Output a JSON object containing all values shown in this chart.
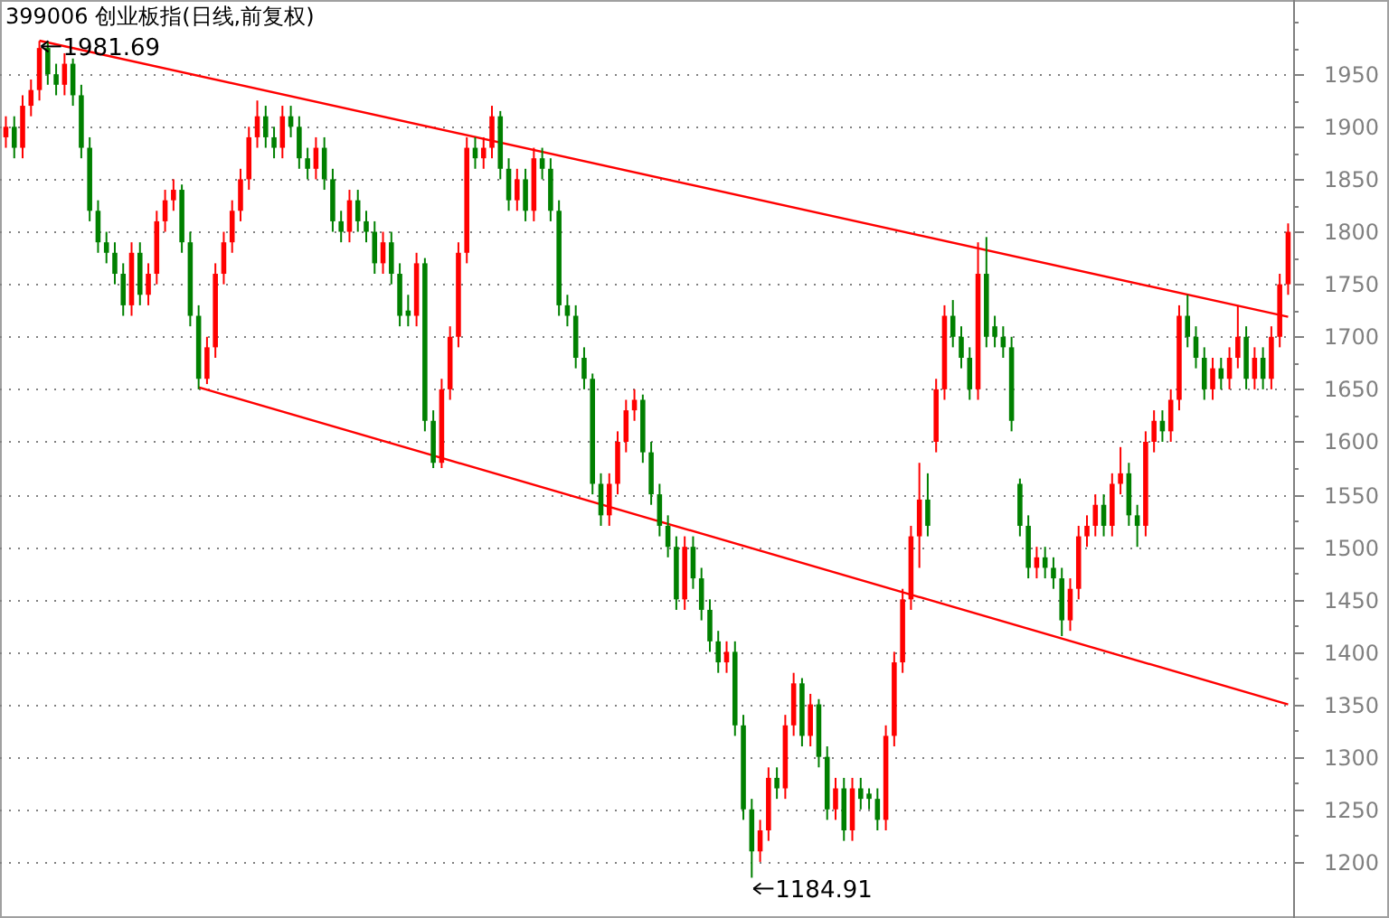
{
  "chart_data": {
    "type": "candlestick",
    "title": "399006 创业板指(日线,前复权)",
    "ylim": [
      1150,
      2019
    ],
    "yticks": [
      1200,
      {
        "value": 1225,
        "label": null
      },
      1250,
      {
        "value": 1275,
        "label": null
      },
      1300,
      {
        "value": 1325,
        "label": null
      },
      1350,
      {
        "value": 1375,
        "label": null
      },
      1400,
      {
        "value": 1425,
        "label": null
      },
      1450,
      {
        "value": 1475,
        "label": null
      },
      1500,
      {
        "value": 1525,
        "label": null
      },
      1550,
      {
        "value": 1575,
        "label": null
      },
      1600,
      {
        "value": 1625,
        "label": null
      },
      1650,
      {
        "value": 1675,
        "label": null
      },
      1700,
      {
        "value": 1725,
        "label": null
      },
      1750,
      {
        "value": 1775,
        "label": null
      },
      1800,
      {
        "value": 1825,
        "label": null
      },
      1850,
      {
        "value": 1875,
        "label": null
      },
      1900,
      {
        "value": 1925,
        "label": null
      },
      1950,
      {
        "value": 1975,
        "label": null
      },
      {
        "value": 2000,
        "label": null
      }
    ],
    "grid": "y",
    "colors": [
      "#ff0000",
      "#008000",
      "#ff0000",
      "#ff0000",
      "#ff0000",
      "#008000",
      "#008000",
      "#ff0000",
      "#008000",
      "#008000",
      "#008000",
      "#008000",
      "#008000",
      "#008000",
      "#008000",
      "#ff0000",
      "#008000",
      "#ff0000",
      "#ff0000",
      "#ff0000",
      "#ff0000",
      "#008000",
      "#008000",
      "#008000",
      "#ff0000",
      "#ff0000",
      "#ff0000",
      "#ff0000",
      "#ff0000",
      "#ff0000",
      "#ff0000",
      "#008000",
      "#008000",
      "#ff0000",
      "#008000",
      "#008000",
      "#008000",
      "#ff0000",
      "#008000",
      "#008000",
      "#008000",
      "#ff0000",
      "#008000",
      "#008000",
      "#008000",
      "#ff0000",
      "#008000",
      "#008000",
      "#008000",
      "#ff0000",
      "#008000",
      "#008000",
      "#ff0000",
      "#ff0000",
      "#ff0000",
      "#ff0000",
      "#008000",
      "#ff0000",
      "#ff0000",
      "#008000",
      "#008000",
      "#ff0000",
      "#008000",
      "#ff0000",
      "#008000",
      "#008000",
      "#008000",
      "#008000",
      "#008000",
      "#008000",
      "#008000",
      "#008000",
      "#ff0000",
      "#ff0000",
      "#ff0000",
      "#ff0000",
      "#008000",
      "#008000",
      "#008000",
      "#008000",
      "#008000",
      "#ff0000",
      "#008000",
      "#008000",
      "#008000",
      "#008000",
      "#ff0000",
      "#008000",
      "#008000",
      "#008000",
      "#ff0000",
      "#ff0000",
      "#008000",
      "#ff0000",
      "#ff0000",
      "#008000",
      "#ff0000",
      "#008000",
      "#008000",
      "#ff0000",
      "#008000",
      "#ff0000",
      "#008000",
      "#008000",
      "#008000",
      "#ff0000",
      "#ff0000",
      "#ff0000",
      "#ff0000",
      "#ff0000",
      "#008000",
      "#ff0000",
      "#ff0000",
      "#008000",
      "#008000",
      "#008000",
      "#ff0000",
      "#008000",
      "#008000",
      "#008000",
      "#008000",
      "#008000",
      "#008000",
      "#ff0000",
      "#008000",
      "#008000",
      "#008000",
      "#ff0000",
      "#ff0000",
      "#ff0000",
      "#ff0000",
      "#008000",
      "#ff0000",
      "#ff0000",
      "#008000",
      "#008000",
      "#ff0000",
      "#ff0000",
      "#008000",
      "#ff0000",
      "#ff0000",
      "#008000",
      "#008000",
      "#008000",
      "#ff0000",
      "#008000",
      "#ff0000",
      "#ff0000",
      "#008000",
      "#ff0000",
      "#008000",
      "#ff0000",
      "#ff0000",
      "#ff0000"
    ],
    "categories": [
      null,
      null,
      null,
      null,
      null,
      null,
      null,
      null,
      null,
      null,
      null,
      null,
      null,
      null,
      null,
      null,
      null,
      null,
      null,
      null,
      null,
      null,
      null,
      null,
      null,
      null,
      null,
      null,
      null,
      null,
      null,
      null,
      null,
      null,
      null,
      null,
      null,
      null,
      null,
      null,
      null,
      null,
      null,
      null,
      null,
      null,
      null,
      null,
      null,
      null,
      null,
      null,
      null,
      null,
      null,
      null,
      null,
      null,
      null,
      null,
      null,
      null,
      null,
      null,
      null,
      null,
      null,
      null,
      null,
      null,
      null,
      null,
      null,
      null,
      null,
      null,
      null,
      null,
      null,
      null,
      null,
      null,
      null,
      null,
      null,
      null,
      null,
      null,
      null,
      null,
      null,
      null,
      null,
      null,
      null,
      null,
      null,
      null,
      null,
      null,
      null,
      null,
      null,
      null,
      null,
      null,
      null,
      null,
      null,
      null,
      null,
      null,
      null,
      null,
      null,
      null,
      null,
      null,
      null,
      null,
      null,
      null,
      null,
      null,
      null,
      null,
      null,
      null,
      null,
      null,
      null,
      null,
      null,
      null,
      null,
      null,
      null,
      null,
      null,
      null,
      null,
      null,
      null,
      null,
      null,
      null,
      null,
      null,
      null,
      null,
      null,
      null,
      null,
      null
    ],
    "ohlc": [
      [
        1890,
        1910,
        1880,
        1900
      ],
      [
        1900,
        1910,
        1870,
        1880
      ],
      [
        1880,
        1930,
        1870,
        1920
      ],
      [
        1920,
        1945,
        1910,
        1935
      ],
      [
        1935,
        1981.69,
        1925,
        1975
      ],
      [
        1975,
        1980,
        1940,
        1950
      ],
      [
        1950,
        1960,
        1930,
        1940
      ],
      [
        1940,
        1970,
        1930,
        1960
      ],
      [
        1960,
        1965,
        1920,
        1930
      ],
      [
        1930,
        1940,
        1870,
        1880
      ],
      [
        1880,
        1890,
        1810,
        1820
      ],
      [
        1820,
        1830,
        1780,
        1790
      ],
      [
        1790,
        1800,
        1770,
        1780
      ],
      [
        1780,
        1790,
        1750,
        1760
      ],
      [
        1760,
        1770,
        1720,
        1730
      ],
      [
        1730,
        1790,
        1720,
        1780
      ],
      [
        1780,
        1790,
        1730,
        1740
      ],
      [
        1740,
        1770,
        1730,
        1760
      ],
      [
        1760,
        1820,
        1750,
        1810
      ],
      [
        1810,
        1840,
        1800,
        1830
      ],
      [
        1830,
        1850,
        1820,
        1840
      ],
      [
        1840,
        1845,
        1780,
        1790
      ],
      [
        1790,
        1800,
        1710,
        1720
      ],
      [
        1720,
        1730,
        1650,
        1660
      ],
      [
        1660,
        1700,
        1655,
        1690
      ],
      [
        1690,
        1770,
        1680,
        1760
      ],
      [
        1760,
        1800,
        1750,
        1790
      ],
      [
        1790,
        1830,
        1780,
        1820
      ],
      [
        1820,
        1860,
        1810,
        1850
      ],
      [
        1850,
        1900,
        1840,
        1890
      ],
      [
        1890,
        1925,
        1880,
        1910
      ],
      [
        1910,
        1920,
        1880,
        1890
      ],
      [
        1890,
        1900,
        1870,
        1880
      ],
      [
        1880,
        1920,
        1870,
        1910
      ],
      [
        1910,
        1920,
        1890,
        1900
      ],
      [
        1900,
        1910,
        1860,
        1870
      ],
      [
        1870,
        1880,
        1850,
        1860
      ],
      [
        1860,
        1890,
        1850,
        1880
      ],
      [
        1880,
        1890,
        1840,
        1850
      ],
      [
        1850,
        1860,
        1800,
        1810
      ],
      [
        1810,
        1820,
        1790,
        1800
      ],
      [
        1800,
        1840,
        1790,
        1830
      ],
      [
        1830,
        1840,
        1800,
        1810
      ],
      [
        1810,
        1820,
        1790,
        1800
      ],
      [
        1800,
        1810,
        1760,
        1770
      ],
      [
        1770,
        1800,
        1760,
        1790
      ],
      [
        1790,
        1800,
        1750,
        1760
      ],
      [
        1760,
        1770,
        1710,
        1720
      ],
      [
        1725,
        1740,
        1710,
        1720
      ],
      [
        1720,
        1780,
        1710,
        1770
      ],
      [
        1770,
        1775,
        1610,
        1620
      ],
      [
        1620,
        1630,
        1575,
        1580
      ],
      [
        1580,
        1660,
        1575,
        1650
      ],
      [
        1650,
        1710,
        1640,
        1700
      ],
      [
        1700,
        1790,
        1690,
        1780
      ],
      [
        1780,
        1890,
        1770,
        1880
      ],
      [
        1880,
        1890,
        1860,
        1870
      ],
      [
        1870,
        1890,
        1860,
        1880
      ],
      [
        1880,
        1920,
        1870,
        1910
      ],
      [
        1910,
        1915,
        1850,
        1860
      ],
      [
        1860,
        1870,
        1820,
        1830
      ],
      [
        1830,
        1860,
        1820,
        1850
      ],
      [
        1850,
        1860,
        1810,
        1820
      ],
      [
        1820,
        1880,
        1810,
        1870
      ],
      [
        1870,
        1880,
        1850,
        1860
      ],
      [
        1860,
        1870,
        1810,
        1820
      ],
      [
        1820,
        1830,
        1720,
        1730
      ],
      [
        1730,
        1740,
        1710,
        1720
      ],
      [
        1720,
        1730,
        1670,
        1680
      ],
      [
        1680,
        1690,
        1650,
        1660
      ],
      [
        1660,
        1665,
        1550,
        1560
      ],
      [
        1560,
        1570,
        1520,
        1530
      ],
      [
        1530,
        1570,
        1520,
        1560
      ],
      [
        1560,
        1610,
        1550,
        1600
      ],
      [
        1600,
        1640,
        1590,
        1630
      ],
      [
        1630,
        1650,
        1620,
        1640
      ],
      [
        1640,
        1645,
        1580,
        1590
      ],
      [
        1590,
        1600,
        1540,
        1550
      ],
      [
        1550,
        1560,
        1510,
        1520
      ],
      [
        1520,
        1530,
        1490,
        1500
      ],
      [
        1500,
        1510,
        1440,
        1450
      ],
      [
        1450,
        1510,
        1440,
        1500
      ],
      [
        1500,
        1510,
        1460,
        1470
      ],
      [
        1470,
        1480,
        1430,
        1440
      ],
      [
        1440,
        1450,
        1400,
        1410
      ],
      [
        1410,
        1420,
        1380,
        1390
      ],
      [
        1390,
        1410,
        1380,
        1400
      ],
      [
        1400,
        1410,
        1320,
        1330
      ],
      [
        1330,
        1340,
        1240,
        1250
      ],
      [
        1250,
        1260,
        1184.91,
        1210
      ],
      [
        1210,
        1240,
        1200,
        1230
      ],
      [
        1230,
        1290,
        1220,
        1280
      ],
      [
        1280,
        1290,
        1260,
        1270
      ],
      [
        1270,
        1340,
        1260,
        1330
      ],
      [
        1330,
        1380,
        1320,
        1370
      ],
      [
        1370,
        1375,
        1310,
        1320
      ],
      [
        1320,
        1360,
        1310,
        1350
      ],
      [
        1350,
        1355,
        1290,
        1300
      ],
      [
        1300,
        1310,
        1240,
        1250
      ],
      [
        1250,
        1280,
        1240,
        1270
      ],
      [
        1270,
        1280,
        1220,
        1230
      ],
      [
        1230,
        1280,
        1220,
        1270
      ],
      [
        1270,
        1280,
        1250,
        1260
      ],
      [
        1265,
        1270,
        1250,
        1260
      ],
      [
        1260,
        1270,
        1230,
        1240
      ],
      [
        1240,
        1330,
        1230,
        1320
      ],
      [
        1320,
        1400,
        1310,
        1390
      ],
      [
        1390,
        1460,
        1380,
        1450
      ],
      [
        1450,
        1520,
        1440,
        1510
      ],
      [
        1510,
        1580,
        1480,
        1545
      ],
      [
        1545,
        1570,
        1510,
        1520
      ],
      [
        1600,
        1660,
        1590,
        1650
      ],
      [
        1650,
        1730,
        1640,
        1720
      ],
      [
        1720,
        1735,
        1690,
        1700
      ],
      [
        1700,
        1710,
        1670,
        1680
      ],
      [
        1680,
        1690,
        1640,
        1650
      ],
      [
        1650,
        1790,
        1640,
        1760
      ],
      [
        1760,
        1795,
        1690,
        1700
      ],
      [
        1710,
        1720,
        1690,
        1700
      ],
      [
        1700,
        1710,
        1680,
        1690
      ],
      [
        1690,
        1700,
        1610,
        1620
      ],
      [
        1560,
        1565,
        1510,
        1520
      ],
      [
        1520,
        1530,
        1470,
        1480
      ],
      [
        1480,
        1500,
        1470,
        1490
      ],
      [
        1490,
        1500,
        1470,
        1480
      ],
      [
        1480,
        1490,
        1460,
        1470
      ],
      [
        1470,
        1480,
        1415,
        1430
      ],
      [
        1430,
        1470,
        1420,
        1460
      ],
      [
        1460,
        1520,
        1450,
        1510
      ],
      [
        1510,
        1530,
        1500,
        1520
      ],
      [
        1520,
        1550,
        1510,
        1540
      ],
      [
        1540,
        1550,
        1510,
        1520
      ],
      [
        1520,
        1570,
        1510,
        1560
      ],
      [
        1560,
        1595,
        1550,
        1570
      ],
      [
        1570,
        1580,
        1520,
        1530
      ],
      [
        1530,
        1540,
        1500,
        1520
      ],
      [
        1520,
        1610,
        1510,
        1600
      ],
      [
        1600,
        1630,
        1590,
        1620
      ],
      [
        1620,
        1630,
        1600,
        1610
      ],
      [
        1610,
        1650,
        1600,
        1640
      ],
      [
        1640,
        1730,
        1630,
        1720
      ],
      [
        1720,
        1740,
        1690,
        1700
      ],
      [
        1700,
        1710,
        1670,
        1680
      ],
      [
        1680,
        1690,
        1640,
        1650
      ],
      [
        1650,
        1680,
        1640,
        1670
      ],
      [
        1670,
        1680,
        1650,
        1660
      ],
      [
        1660,
        1690,
        1650,
        1680
      ],
      [
        1680,
        1730,
        1670,
        1700
      ],
      [
        1700,
        1710,
        1650,
        1660
      ],
      [
        1660,
        1690,
        1650,
        1680
      ],
      [
        1680,
        1690,
        1650,
        1660
      ],
      [
        1660,
        1710,
        1650,
        1700
      ],
      [
        1700,
        1760,
        1690,
        1750
      ],
      [
        1750,
        1808,
        1740,
        1800
      ]
    ],
    "series": [
      {
        "type": "line",
        "color": "#ff0000",
        "values": [
          null,
          null,
          null,
          null,
          1982,
          null,
          null,
          null,
          null,
          null,
          null,
          null,
          null,
          null,
          null,
          null,
          null,
          null,
          null,
          null,
          null,
          null,
          null,
          null,
          null,
          null,
          null,
          null,
          null,
          null,
          null,
          null,
          null,
          null,
          null,
          null,
          null,
          null,
          null,
          null,
          null,
          null,
          null,
          null,
          null,
          null,
          null,
          null,
          null,
          null,
          null,
          null,
          null,
          null,
          null,
          null,
          null,
          null,
          null,
          null,
          null,
          null,
          null,
          null,
          null,
          null,
          null,
          null,
          null,
          null,
          null,
          null,
          null,
          null,
          null,
          null,
          null,
          null,
          null,
          null,
          null,
          null,
          null,
          null,
          null,
          null,
          null,
          null,
          null,
          null,
          null,
          null,
          null,
          null,
          null,
          null,
          null,
          null,
          null,
          null,
          null,
          null,
          null,
          null,
          null,
          null,
          null,
          null,
          null,
          null,
          null,
          null,
          null,
          null,
          null,
          null,
          null,
          null,
          null,
          null,
          null,
          null,
          null,
          null,
          null,
          null,
          null,
          null,
          null,
          null,
          null,
          null,
          null,
          null,
          null,
          null,
          null,
          null,
          null,
          null,
          null,
          null,
          null,
          null,
          null,
          null,
          null,
          null,
          null,
          null,
          null,
          null,
          null,
          1719
        ]
      },
      {
        "type": "line",
        "color": "#ff0000",
        "values": [
          null,
          null,
          null,
          null,
          null,
          null,
          null,
          null,
          null,
          null,
          null,
          null,
          null,
          null,
          null,
          null,
          null,
          null,
          null,
          null,
          null,
          null,
          null,
          1652,
          null,
          null,
          null,
          null,
          null,
          null,
          null,
          null,
          null,
          null,
          null,
          null,
          null,
          null,
          null,
          null,
          null,
          null,
          null,
          null,
          null,
          null,
          null,
          null,
          null,
          null,
          null,
          null,
          null,
          null,
          null,
          null,
          null,
          null,
          null,
          null,
          null,
          null,
          null,
          null,
          null,
          null,
          null,
          null,
          null,
          null,
          null,
          null,
          null,
          null,
          null,
          null,
          null,
          null,
          null,
          null,
          null,
          null,
          null,
          null,
          null,
          null,
          null,
          null,
          null,
          null,
          null,
          null,
          null,
          null,
          null,
          null,
          null,
          null,
          null,
          null,
          null,
          null,
          null,
          null,
          null,
          null,
          null,
          null,
          null,
          null,
          null,
          null,
          null,
          null,
          null,
          null,
          null,
          null,
          null,
          null,
          null,
          null,
          null,
          null,
          null,
          null,
          null,
          null,
          null,
          null,
          null,
          null,
          null,
          null,
          null,
          null,
          null,
          null,
          null,
          null,
          null,
          null,
          null,
          null,
          null,
          null,
          null,
          null,
          null,
          null,
          null,
          null,
          null,
          1350
        ]
      }
    ],
    "annotations": [
      "1981.69",
      "1184.91"
    ]
  }
}
